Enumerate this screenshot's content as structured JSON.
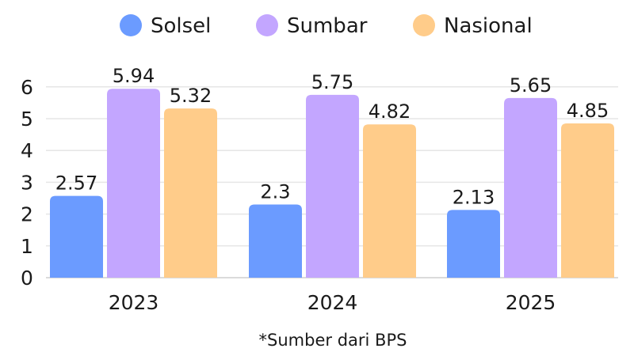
{
  "chart_data": {
    "type": "bar",
    "categories": [
      "2023",
      "2024",
      "2025"
    ],
    "series": [
      {
        "name": "Solsel",
        "color": "#6b9bff",
        "values": [
          2.57,
          2.3,
          2.13
        ],
        "labels": [
          "2.57",
          "2.3",
          "2.13"
        ]
      },
      {
        "name": "Sumbar",
        "color": "#c3a6ff",
        "values": [
          5.94,
          5.75,
          5.65
        ],
        "labels": [
          "5.94",
          "5.75",
          "5.65"
        ]
      },
      {
        "name": "Nasional",
        "color": "#ffcc8a",
        "values": [
          5.32,
          4.82,
          4.85
        ],
        "labels": [
          "5.32",
          "4.82",
          "4.85"
        ]
      }
    ],
    "y_ticks": [
      "0",
      "1",
      "2",
      "3",
      "4",
      "5",
      "6"
    ],
    "ylim": [
      0,
      6.5
    ],
    "grid": true,
    "legend": "top",
    "note": "*Sumber dari BPS"
  }
}
